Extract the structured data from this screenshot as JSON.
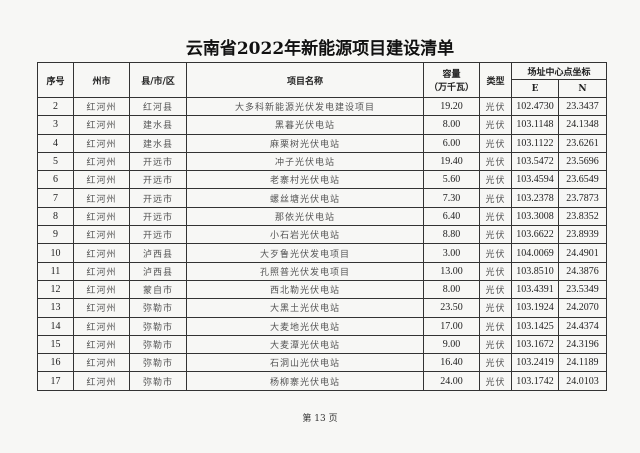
{
  "title": "云南省2022年新能源项目建设清单",
  "table": {
    "headers": {
      "index": "序号",
      "prefecture": "州市",
      "county": "县/市/区",
      "project_name": "项目名称",
      "capacity": "容量\n（万千瓦）",
      "capacity_line1": "容量",
      "capacity_line2": "（万千瓦）",
      "type": "类型",
      "coords": "场址中心点坐标",
      "e": "E",
      "n": "N"
    },
    "rows": [
      {
        "index": "2",
        "prefecture": "红河州",
        "county": "红河县",
        "name": "大多科新能源光伏发电建设项目",
        "capacity": "19.20",
        "type": "光伏",
        "e": "102.4730",
        "n": "23.3437"
      },
      {
        "index": "3",
        "prefecture": "红河州",
        "county": "建水县",
        "name": "黑暮光伏电站",
        "capacity": "8.00",
        "type": "光伏",
        "e": "103.1148",
        "n": "24.1348"
      },
      {
        "index": "4",
        "prefecture": "红河州",
        "county": "建水县",
        "name": "麻栗树光伏电站",
        "capacity": "6.00",
        "type": "光伏",
        "e": "103.1122",
        "n": "23.6261"
      },
      {
        "index": "5",
        "prefecture": "红河州",
        "county": "开远市",
        "name": "冲子光伏电站",
        "capacity": "19.40",
        "type": "光伏",
        "e": "103.5472",
        "n": "23.5696"
      },
      {
        "index": "6",
        "prefecture": "红河州",
        "county": "开远市",
        "name": "老寨村光伏电站",
        "capacity": "5.60",
        "type": "光伏",
        "e": "103.4594",
        "n": "23.6549"
      },
      {
        "index": "7",
        "prefecture": "红河州",
        "county": "开远市",
        "name": "螺丝塘光伏电站",
        "capacity": "7.30",
        "type": "光伏",
        "e": "103.2378",
        "n": "23.7873"
      },
      {
        "index": "8",
        "prefecture": "红河州",
        "county": "开远市",
        "name": "那依光伏电站",
        "capacity": "6.40",
        "type": "光伏",
        "e": "103.3008",
        "n": "23.8352"
      },
      {
        "index": "9",
        "prefecture": "红河州",
        "county": "开远市",
        "name": "小石岩光伏电站",
        "capacity": "8.80",
        "type": "光伏",
        "e": "103.6622",
        "n": "23.8939"
      },
      {
        "index": "10",
        "prefecture": "红河州",
        "county": "泸西县",
        "name": "大歹鲁光伏发电项目",
        "capacity": "3.00",
        "type": "光伏",
        "e": "104.0069",
        "n": "24.4901"
      },
      {
        "index": "11",
        "prefecture": "红河州",
        "county": "泸西县",
        "name": "孔照普光伏发电项目",
        "capacity": "13.00",
        "type": "光伏",
        "e": "103.8510",
        "n": "24.3876"
      },
      {
        "index": "12",
        "prefecture": "红河州",
        "county": "蒙自市",
        "name": "西北勒光伏电站",
        "capacity": "8.00",
        "type": "光伏",
        "e": "103.4391",
        "n": "23.5349"
      },
      {
        "index": "13",
        "prefecture": "红河州",
        "county": "弥勒市",
        "name": "大黑土光伏电站",
        "capacity": "23.50",
        "type": "光伏",
        "e": "103.1924",
        "n": "24.2070"
      },
      {
        "index": "14",
        "prefecture": "红河州",
        "county": "弥勒市",
        "name": "大麦地光伏电站",
        "capacity": "17.00",
        "type": "光伏",
        "e": "103.1425",
        "n": "24.4374"
      },
      {
        "index": "15",
        "prefecture": "红河州",
        "county": "弥勒市",
        "name": "大麦潭光伏电站",
        "capacity": "9.00",
        "type": "光伏",
        "e": "103.1672",
        "n": "24.3196"
      },
      {
        "index": "16",
        "prefecture": "红河州",
        "county": "弥勒市",
        "name": "石洞山光伏电站",
        "capacity": "16.40",
        "type": "光伏",
        "e": "103.2419",
        "n": "24.1189"
      },
      {
        "index": "17",
        "prefecture": "红河州",
        "county": "弥勒市",
        "name": "杨柳寨光伏电站",
        "capacity": "24.00",
        "type": "光伏",
        "e": "103.1742",
        "n": "24.0103"
      }
    ]
  },
  "page_number": "第 13 页"
}
